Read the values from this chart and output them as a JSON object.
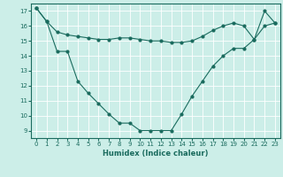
{
  "title": "",
  "xlabel": "Humidex (Indice chaleur)",
  "ylabel": "",
  "bg_color": "#cceee8",
  "line_color": "#1a6b5e",
  "grid_color": "#ffffff",
  "xlim": [
    -0.5,
    23.5
  ],
  "ylim": [
    8.5,
    17.5
  ],
  "yticks": [
    9,
    10,
    11,
    12,
    13,
    14,
    15,
    16,
    17
  ],
  "xticks": [
    0,
    1,
    2,
    3,
    4,
    5,
    6,
    7,
    8,
    9,
    10,
    11,
    12,
    13,
    14,
    15,
    16,
    17,
    18,
    19,
    20,
    21,
    22,
    23
  ],
  "line1_x": [
    0,
    1,
    2,
    3,
    4,
    5,
    6,
    7,
    8,
    9,
    10,
    11,
    12,
    13,
    14,
    15,
    16,
    17,
    18,
    19,
    20,
    21,
    22,
    23
  ],
  "line1_y": [
    17.2,
    16.3,
    15.6,
    15.4,
    15.3,
    15.2,
    15.1,
    15.1,
    15.2,
    15.2,
    15.1,
    15.0,
    15.0,
    14.9,
    14.9,
    15.0,
    15.3,
    15.7,
    16.0,
    16.2,
    16.0,
    15.1,
    16.0,
    16.2
  ],
  "line2_x": [
    0,
    1,
    2,
    3,
    4,
    5,
    6,
    7,
    8,
    9,
    10,
    11,
    12,
    13,
    14,
    15,
    16,
    17,
    18,
    19,
    20,
    21,
    22,
    23
  ],
  "line2_y": [
    17.2,
    16.3,
    14.3,
    14.3,
    12.3,
    11.5,
    10.8,
    10.1,
    9.5,
    9.5,
    9.0,
    9.0,
    9.0,
    9.0,
    10.1,
    11.3,
    12.3,
    13.3,
    14.0,
    14.5,
    14.5,
    15.1,
    17.0,
    16.2
  ],
  "marker_size": 2.0,
  "line_width": 0.8,
  "tick_fontsize": 5.0,
  "xlabel_fontsize": 6.0
}
